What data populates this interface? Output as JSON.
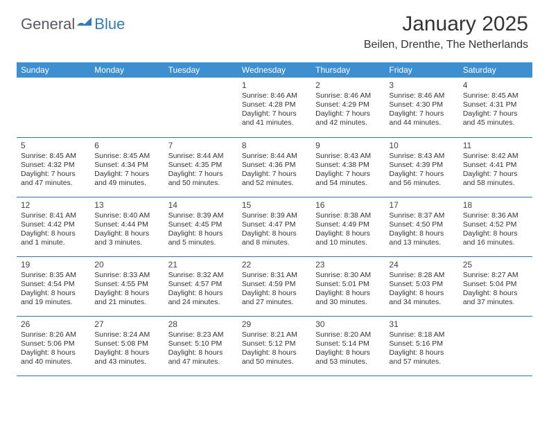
{
  "brand": {
    "general": "General",
    "blue": "Blue"
  },
  "header": {
    "title": "January 2025",
    "location": "Beilen, Drenthe, The Netherlands"
  },
  "colors": {
    "header_bg": "#3d8fcf",
    "cell_border": "#2f6ea8",
    "text": "#303236",
    "logo_gray": "#555b60",
    "logo_blue": "#2f7bbf",
    "background": "#ffffff"
  },
  "day_names": [
    "Sunday",
    "Monday",
    "Tuesday",
    "Wednesday",
    "Thursday",
    "Friday",
    "Saturday"
  ],
  "grid": [
    [
      null,
      null,
      null,
      {
        "n": "1",
        "sr": "8:46 AM",
        "ss": "4:28 PM",
        "dl": "7 hours and 41 minutes."
      },
      {
        "n": "2",
        "sr": "8:46 AM",
        "ss": "4:29 PM",
        "dl": "7 hours and 42 minutes."
      },
      {
        "n": "3",
        "sr": "8:46 AM",
        "ss": "4:30 PM",
        "dl": "7 hours and 44 minutes."
      },
      {
        "n": "4",
        "sr": "8:45 AM",
        "ss": "4:31 PM",
        "dl": "7 hours and 45 minutes."
      }
    ],
    [
      {
        "n": "5",
        "sr": "8:45 AM",
        "ss": "4:32 PM",
        "dl": "7 hours and 47 minutes."
      },
      {
        "n": "6",
        "sr": "8:45 AM",
        "ss": "4:34 PM",
        "dl": "7 hours and 49 minutes."
      },
      {
        "n": "7",
        "sr": "8:44 AM",
        "ss": "4:35 PM",
        "dl": "7 hours and 50 minutes."
      },
      {
        "n": "8",
        "sr": "8:44 AM",
        "ss": "4:36 PM",
        "dl": "7 hours and 52 minutes."
      },
      {
        "n": "9",
        "sr": "8:43 AM",
        "ss": "4:38 PM",
        "dl": "7 hours and 54 minutes."
      },
      {
        "n": "10",
        "sr": "8:43 AM",
        "ss": "4:39 PM",
        "dl": "7 hours and 56 minutes."
      },
      {
        "n": "11",
        "sr": "8:42 AM",
        "ss": "4:41 PM",
        "dl": "7 hours and 58 minutes."
      }
    ],
    [
      {
        "n": "12",
        "sr": "8:41 AM",
        "ss": "4:42 PM",
        "dl": "8 hours and 1 minute."
      },
      {
        "n": "13",
        "sr": "8:40 AM",
        "ss": "4:44 PM",
        "dl": "8 hours and 3 minutes."
      },
      {
        "n": "14",
        "sr": "8:39 AM",
        "ss": "4:45 PM",
        "dl": "8 hours and 5 minutes."
      },
      {
        "n": "15",
        "sr": "8:39 AM",
        "ss": "4:47 PM",
        "dl": "8 hours and 8 minutes."
      },
      {
        "n": "16",
        "sr": "8:38 AM",
        "ss": "4:49 PM",
        "dl": "8 hours and 10 minutes."
      },
      {
        "n": "17",
        "sr": "8:37 AM",
        "ss": "4:50 PM",
        "dl": "8 hours and 13 minutes."
      },
      {
        "n": "18",
        "sr": "8:36 AM",
        "ss": "4:52 PM",
        "dl": "8 hours and 16 minutes."
      }
    ],
    [
      {
        "n": "19",
        "sr": "8:35 AM",
        "ss": "4:54 PM",
        "dl": "8 hours and 19 minutes."
      },
      {
        "n": "20",
        "sr": "8:33 AM",
        "ss": "4:55 PM",
        "dl": "8 hours and 21 minutes."
      },
      {
        "n": "21",
        "sr": "8:32 AM",
        "ss": "4:57 PM",
        "dl": "8 hours and 24 minutes."
      },
      {
        "n": "22",
        "sr": "8:31 AM",
        "ss": "4:59 PM",
        "dl": "8 hours and 27 minutes."
      },
      {
        "n": "23",
        "sr": "8:30 AM",
        "ss": "5:01 PM",
        "dl": "8 hours and 30 minutes."
      },
      {
        "n": "24",
        "sr": "8:28 AM",
        "ss": "5:03 PM",
        "dl": "8 hours and 34 minutes."
      },
      {
        "n": "25",
        "sr": "8:27 AM",
        "ss": "5:04 PM",
        "dl": "8 hours and 37 minutes."
      }
    ],
    [
      {
        "n": "26",
        "sr": "8:26 AM",
        "ss": "5:06 PM",
        "dl": "8 hours and 40 minutes."
      },
      {
        "n": "27",
        "sr": "8:24 AM",
        "ss": "5:08 PM",
        "dl": "8 hours and 43 minutes."
      },
      {
        "n": "28",
        "sr": "8:23 AM",
        "ss": "5:10 PM",
        "dl": "8 hours and 47 minutes."
      },
      {
        "n": "29",
        "sr": "8:21 AM",
        "ss": "5:12 PM",
        "dl": "8 hours and 50 minutes."
      },
      {
        "n": "30",
        "sr": "8:20 AM",
        "ss": "5:14 PM",
        "dl": "8 hours and 53 minutes."
      },
      {
        "n": "31",
        "sr": "8:18 AM",
        "ss": "5:16 PM",
        "dl": "8 hours and 57 minutes."
      },
      null
    ]
  ],
  "labels": {
    "sunrise": "Sunrise: ",
    "sunset": "Sunset: ",
    "daylight": "Daylight: "
  }
}
